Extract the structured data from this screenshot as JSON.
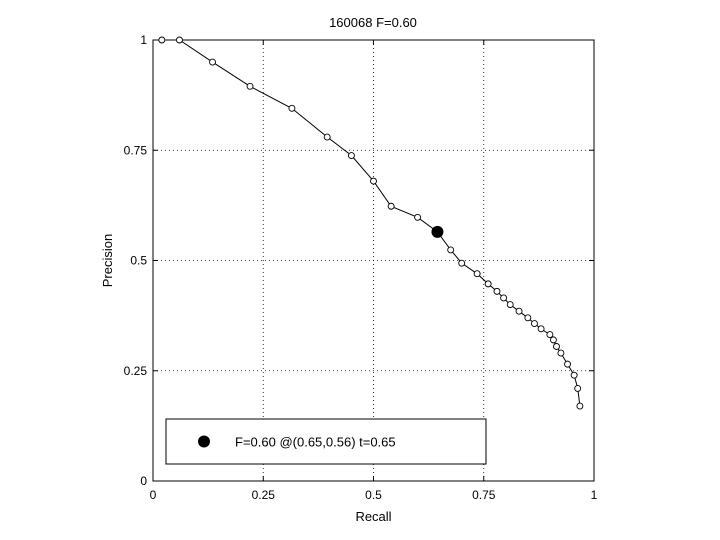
{
  "chart_data": {
    "type": "line",
    "title": "160068 F=0.60",
    "xlabel": "Recall",
    "ylabel": "Precision",
    "xlim": [
      0,
      1
    ],
    "ylim": [
      0,
      1
    ],
    "grid": true,
    "x_ticks": [
      "0",
      "0.25",
      "0.5",
      "0.75",
      "1"
    ],
    "y_ticks": [
      "0",
      "0.25",
      "0.5",
      "0.75",
      "1"
    ],
    "series": [
      {
        "points": [
          [
            0.02,
            1.0
          ],
          [
            0.06,
            1.0
          ],
          [
            0.135,
            0.95
          ],
          [
            0.22,
            0.895
          ],
          [
            0.315,
            0.845
          ],
          [
            0.395,
            0.78
          ],
          [
            0.45,
            0.738
          ],
          [
            0.5,
            0.68
          ],
          [
            0.54,
            0.623
          ],
          [
            0.6,
            0.598
          ],
          [
            0.645,
            0.565
          ],
          [
            0.675,
            0.524
          ],
          [
            0.7,
            0.494
          ],
          [
            0.735,
            0.47
          ],
          [
            0.76,
            0.447
          ],
          [
            0.78,
            0.43
          ],
          [
            0.795,
            0.415
          ],
          [
            0.81,
            0.4
          ],
          [
            0.83,
            0.385
          ],
          [
            0.85,
            0.37
          ],
          [
            0.865,
            0.357
          ],
          [
            0.88,
            0.345
          ],
          [
            0.9,
            0.332
          ],
          [
            0.908,
            0.32
          ],
          [
            0.915,
            0.305
          ],
          [
            0.925,
            0.29
          ],
          [
            0.94,
            0.265
          ],
          [
            0.955,
            0.24
          ],
          [
            0.963,
            0.21
          ],
          [
            0.968,
            0.17
          ]
        ]
      }
    ],
    "highlight": {
      "recall": 0.645,
      "precision": 0.565,
      "label": "F=0.60 @(0.65,0.56) t=0.65"
    },
    "legend_position": "bottom-left"
  }
}
